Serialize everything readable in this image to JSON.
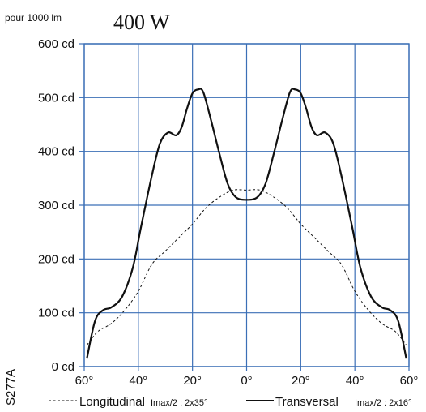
{
  "chart_data": {
    "type": "line",
    "title": "400 W",
    "subtitle": "pour 1000 lm",
    "side_label": "S277A",
    "x_ticks": [
      "60°",
      "40°",
      "20°",
      "0°",
      "20°",
      "40°",
      "60°"
    ],
    "y_ticks": [
      "0 cd",
      "100 cd",
      "200 cd",
      "300 cd",
      "400 cd",
      "500 cd",
      "600 cd"
    ],
    "xlim": [
      -60,
      60
    ],
    "ylim": [
      0,
      600
    ],
    "grid": true,
    "series": [
      {
        "name": "Longitudinal",
        "note": "Imax/2 : 2x35°",
        "style": "dashed",
        "x": [
          -59,
          -55,
          -50,
          -45,
          -40,
          -35,
          -30,
          -25,
          -20,
          -15,
          -10,
          -5,
          0,
          5,
          10,
          15,
          20,
          25,
          30,
          35,
          40,
          45,
          50,
          55,
          59
        ],
        "y": [
          40,
          65,
          80,
          105,
          140,
          190,
          215,
          240,
          265,
          295,
          315,
          328,
          328,
          328,
          315,
          295,
          265,
          240,
          215,
          190,
          140,
          105,
          80,
          65,
          40
        ]
      },
      {
        "name": "Transversal",
        "note": "Imax/2 : 2x16°",
        "style": "solid",
        "x": [
          -59,
          -56,
          -53,
          -50,
          -46,
          -42,
          -39,
          -35,
          -32,
          -29,
          -26,
          -24,
          -22,
          -20,
          -18,
          -16,
          -13,
          -10,
          -7,
          -4,
          0,
          4,
          7,
          10,
          13,
          16,
          18,
          20,
          22,
          24,
          26,
          29,
          32,
          35,
          39,
          42,
          46,
          50,
          53,
          56,
          59
        ],
        "y": [
          15,
          85,
          105,
          110,
          130,
          185,
          260,
          355,
          415,
          435,
          430,
          445,
          480,
          508,
          515,
          510,
          455,
          395,
          340,
          315,
          310,
          315,
          340,
          395,
          455,
          510,
          515,
          508,
          480,
          445,
          430,
          435,
          415,
          355,
          260,
          185,
          130,
          110,
          105,
          85,
          15
        ]
      }
    ]
  }
}
